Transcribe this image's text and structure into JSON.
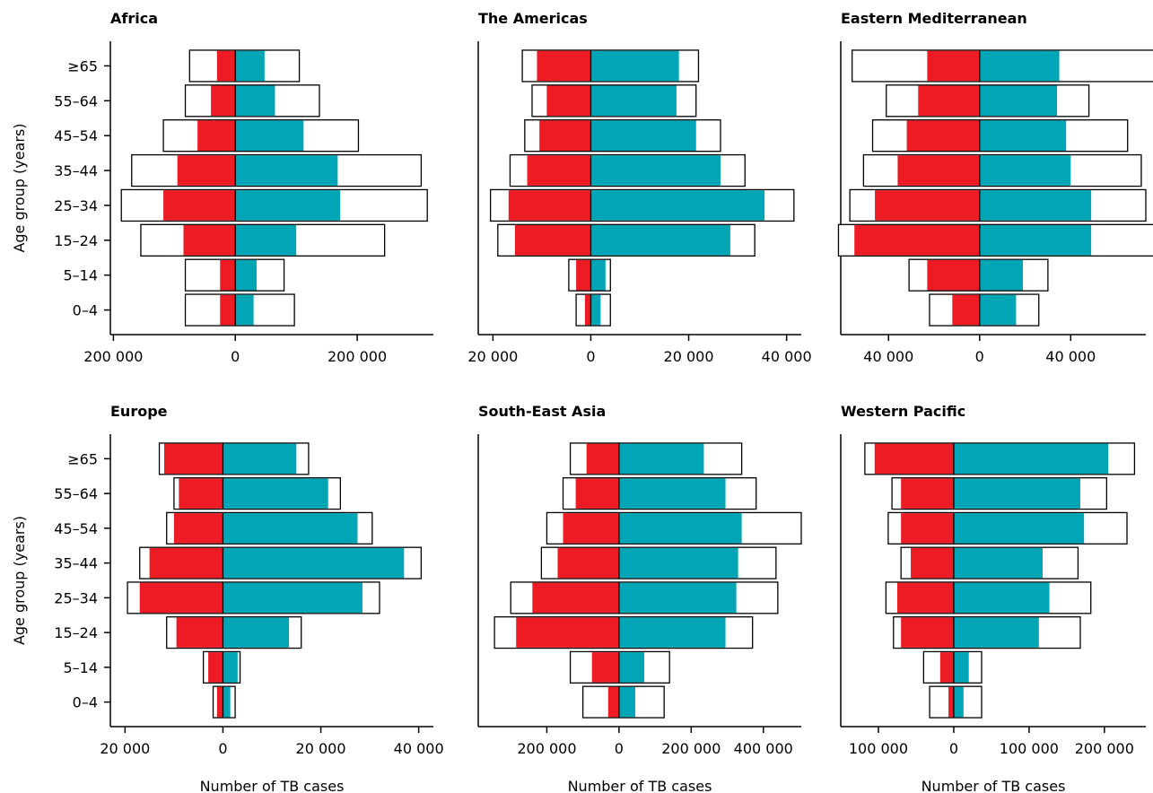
{
  "chart_data": {
    "type": "bar",
    "age_groups": [
      "0–4",
      "5–14",
      "15–24",
      "25–34",
      "35–44",
      "45–54",
      "55–64",
      "≥65"
    ],
    "ylabel": "Age group (years)",
    "xlabel": "Number of TB cases",
    "colors": {
      "left_bar": "#ed1c24",
      "right_bar": "#00a6b5",
      "outline": "#ffffff"
    },
    "panels": [
      {
        "title": "Africa",
        "xlim": [
          -205000,
          325000
        ],
        "ticks": [
          {
            "v": -200000,
            "label": "200 000"
          },
          {
            "v": 0,
            "label": "0"
          },
          {
            "v": 200000,
            "label": "200 000"
          }
        ],
        "left_bar": [
          25000,
          25000,
          85000,
          118000,
          95000,
          62000,
          40000,
          30000
        ],
        "right_bar": [
          30000,
          35000,
          100000,
          172000,
          168000,
          112000,
          65000,
          48000
        ],
        "left_outline": [
          82000,
          82000,
          155000,
          187000,
          170000,
          118000,
          82000,
          75000
        ],
        "right_outline": [
          97000,
          80000,
          245000,
          315000,
          305000,
          202000,
          138000,
          105000
        ]
      },
      {
        "title": "The Americas",
        "xlim": [
          -23000,
          43000
        ],
        "ticks": [
          {
            "v": -20000,
            "label": "20 000"
          },
          {
            "v": 0,
            "label": "0"
          },
          {
            "v": 20000,
            "label": "20 000"
          },
          {
            "v": 40000,
            "label": "40 000"
          }
        ],
        "left_bar": [
          1200,
          3000,
          15500,
          16800,
          13000,
          10500,
          9000,
          11000
        ],
        "right_bar": [
          2000,
          3000,
          28500,
          35500,
          26500,
          21500,
          17500,
          18000
        ],
        "left_outline": [
          3000,
          4500,
          19000,
          20500,
          16500,
          13500,
          12000,
          14000
        ],
        "right_outline": [
          4000,
          4000,
          33500,
          41500,
          31500,
          26500,
          21500,
          22000
        ]
      },
      {
        "title": "Eastern Mediterranean",
        "xlim": [
          -61000,
          73000
        ],
        "ticks": [
          {
            "v": -40000,
            "label": "40 000"
          },
          {
            "v": 0,
            "label": "0"
          },
          {
            "v": 40000,
            "label": "40 000"
          }
        ],
        "left_bar": [
          12000,
          23000,
          55000,
          46000,
          36000,
          32000,
          27000,
          23000
        ],
        "right_bar": [
          16000,
          19000,
          49000,
          49000,
          40000,
          38000,
          34000,
          35000
        ],
        "left_outline": [
          22000,
          31000,
          62000,
          57000,
          51000,
          47000,
          41000,
          56000
        ],
        "right_outline": [
          26000,
          30000,
          79000,
          73000,
          71000,
          65000,
          48000,
          79000
        ]
      },
      {
        "title": "Europe",
        "xlim": [
          -23000,
          43000
        ],
        "ticks": [
          {
            "v": -20000,
            "label": "20 000"
          },
          {
            "v": 0,
            "label": "0"
          },
          {
            "v": 20000,
            "label": "20 000"
          },
          {
            "v": 40000,
            "label": "40 000"
          }
        ],
        "left_bar": [
          1200,
          3000,
          9500,
          17000,
          15000,
          10000,
          9000,
          12000
        ],
        "right_bar": [
          1500,
          3000,
          13500,
          28500,
          37000,
          27500,
          21500,
          15000
        ],
        "left_outline": [
          2000,
          4000,
          11500,
          19500,
          17000,
          11500,
          10000,
          13000
        ],
        "right_outline": [
          2500,
          3500,
          16000,
          32000,
          40500,
          30500,
          24000,
          17500
        ]
      },
      {
        "title": "South-East Asia",
        "xlim": [
          -390000,
          505000
        ],
        "ticks": [
          {
            "v": -200000,
            "label": "200 000"
          },
          {
            "v": 0,
            "label": "0"
          },
          {
            "v": 200000,
            "label": "200 000"
          },
          {
            "v": 400000,
            "label": "400 000"
          }
        ],
        "left_bar": [
          30000,
          75000,
          285000,
          240000,
          170000,
          155000,
          120000,
          90000
        ],
        "right_bar": [
          45000,
          70000,
          295000,
          325000,
          330000,
          340000,
          295000,
          235000
        ],
        "left_outline": [
          100000,
          135000,
          345000,
          300000,
          215000,
          200000,
          155000,
          135000
        ],
        "right_outline": [
          125000,
          140000,
          370000,
          440000,
          435000,
          505000,
          380000,
          340000
        ]
      },
      {
        "title": "Western Pacific",
        "xlim": [
          -150000,
          255000
        ],
        "ticks": [
          {
            "v": -100000,
            "label": "100 000"
          },
          {
            "v": 0,
            "label": "0"
          },
          {
            "v": 100000,
            "label": "100 000"
          },
          {
            "v": 200000,
            "label": "200 000"
          }
        ],
        "left_bar": [
          7000,
          18000,
          70000,
          75000,
          57000,
          70000,
          70000,
          105000
        ],
        "right_bar": [
          13000,
          20000,
          113000,
          127000,
          118000,
          173000,
          168000,
          205000
        ],
        "left_outline": [
          32000,
          40000,
          80000,
          90000,
          70000,
          87000,
          82000,
          118000
        ],
        "right_outline": [
          37000,
          37000,
          168000,
          182000,
          165000,
          230000,
          203000,
          240000
        ]
      }
    ]
  }
}
